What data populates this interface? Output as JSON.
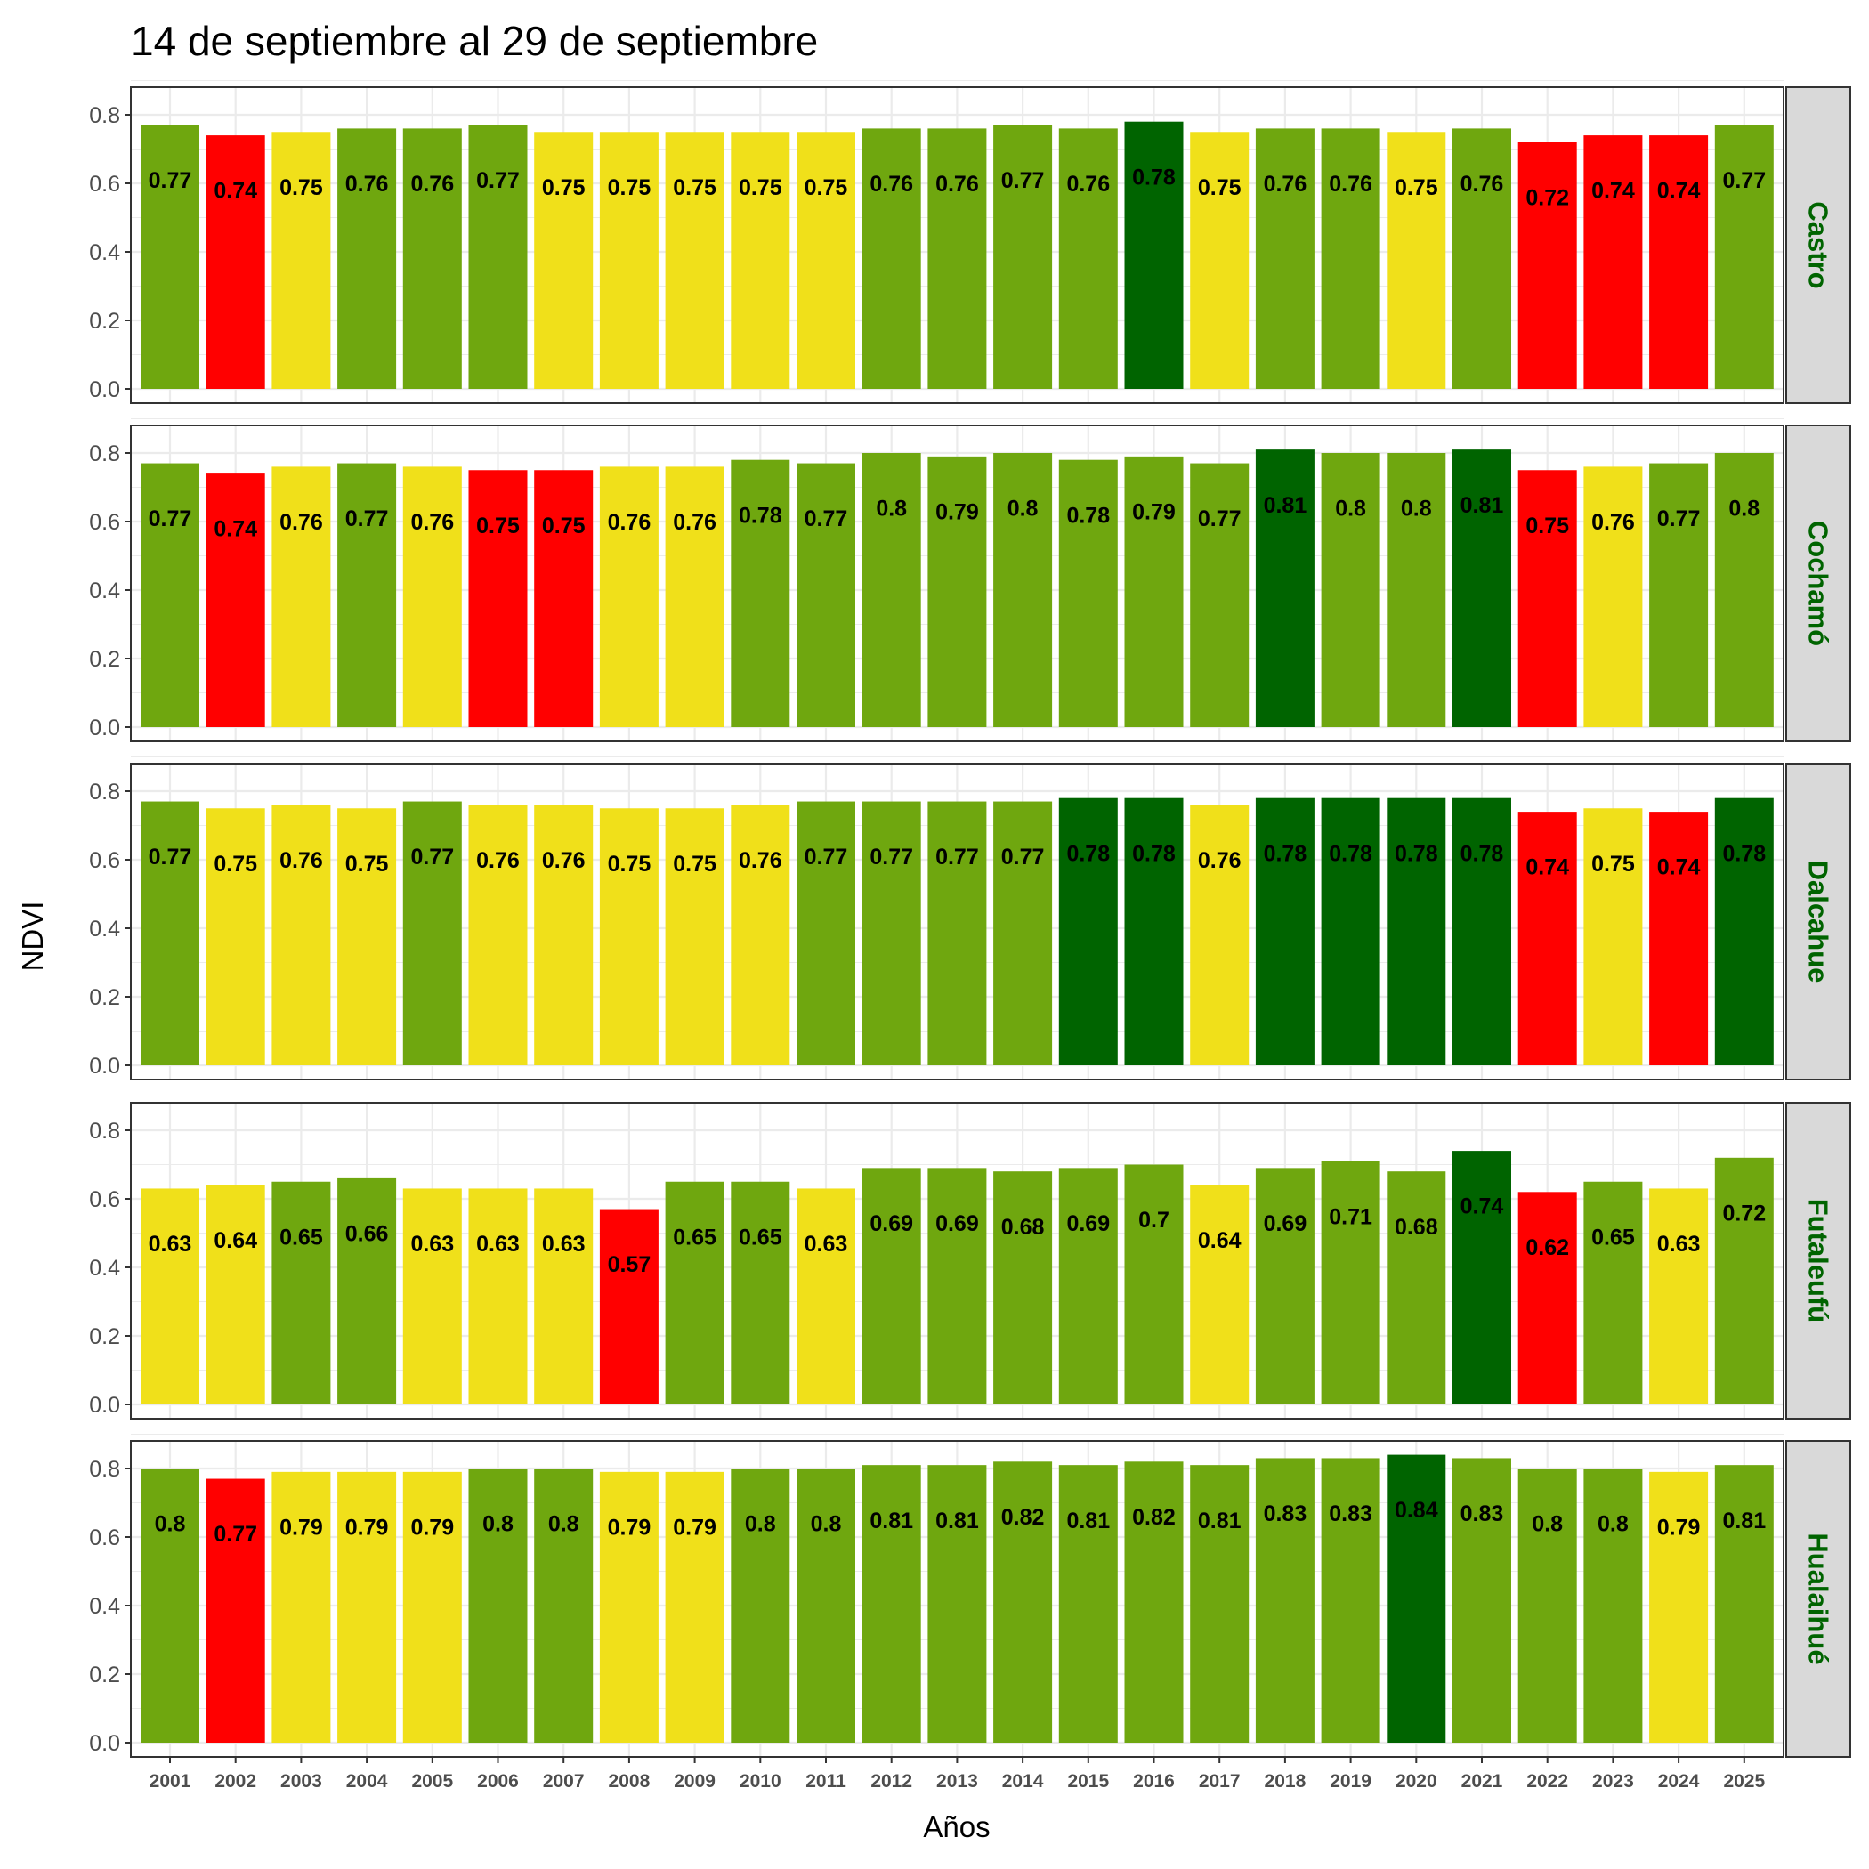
{
  "chart_data": {
    "type": "bar",
    "title": "14 de septiembre al 29 de septiembre",
    "xlabel": "Años",
    "ylabel": "NDVI",
    "ylim": [
      0,
      0.88
    ],
    "yticks": [
      "0.0",
      "0.2",
      "0.4",
      "0.6",
      "0.8"
    ],
    "grid": true,
    "categories": [
      "2001",
      "2002",
      "2003",
      "2004",
      "2005",
      "2006",
      "2007",
      "2008",
      "2009",
      "2010",
      "2011",
      "2012",
      "2013",
      "2014",
      "2015",
      "2016",
      "2017",
      "2018",
      "2019",
      "2020",
      "2021",
      "2022",
      "2023",
      "2024",
      "2025"
    ],
    "color_map": {
      "D": "#006400",
      "G": "#6fa70f",
      "Y": "#f0e01a",
      "R": "#ff0000"
    },
    "series": [
      {
        "name": "Castro",
        "values": [
          0.77,
          0.74,
          0.75,
          0.76,
          0.76,
          0.77,
          0.75,
          0.75,
          0.75,
          0.75,
          0.75,
          0.76,
          0.76,
          0.77,
          0.76,
          0.78,
          0.75,
          0.76,
          0.76,
          0.75,
          0.76,
          0.72,
          0.74,
          0.74,
          0.77
        ],
        "colors": [
          "G",
          "R",
          "Y",
          "G",
          "G",
          "G",
          "Y",
          "Y",
          "Y",
          "Y",
          "Y",
          "G",
          "G",
          "G",
          "G",
          "D",
          "Y",
          "G",
          "G",
          "Y",
          "G",
          "R",
          "R",
          "R",
          "G"
        ]
      },
      {
        "name": "Cochamó",
        "values": [
          0.77,
          0.74,
          0.76,
          0.77,
          0.76,
          0.75,
          0.75,
          0.76,
          0.76,
          0.78,
          0.77,
          0.8,
          0.79,
          0.8,
          0.78,
          0.79,
          0.77,
          0.81,
          0.8,
          0.8,
          0.81,
          0.75,
          0.76,
          0.77,
          0.8
        ],
        "colors": [
          "G",
          "R",
          "Y",
          "G",
          "Y",
          "R",
          "R",
          "Y",
          "Y",
          "G",
          "G",
          "G",
          "G",
          "G",
          "G",
          "G",
          "G",
          "D",
          "G",
          "G",
          "D",
          "R",
          "Y",
          "G",
          "G"
        ]
      },
      {
        "name": "Dalcahue",
        "values": [
          0.77,
          0.75,
          0.76,
          0.75,
          0.77,
          0.76,
          0.76,
          0.75,
          0.75,
          0.76,
          0.77,
          0.77,
          0.77,
          0.77,
          0.78,
          0.78,
          0.76,
          0.78,
          0.78,
          0.78,
          0.78,
          0.74,
          0.75,
          0.74,
          0.78
        ],
        "colors": [
          "G",
          "Y",
          "Y",
          "Y",
          "G",
          "Y",
          "Y",
          "Y",
          "Y",
          "Y",
          "G",
          "G",
          "G",
          "G",
          "D",
          "D",
          "Y",
          "D",
          "D",
          "D",
          "D",
          "R",
          "Y",
          "R",
          "D"
        ]
      },
      {
        "name": "Futaleufú",
        "values": [
          0.63,
          0.64,
          0.65,
          0.66,
          0.63,
          0.63,
          0.63,
          0.57,
          0.65,
          0.65,
          0.63,
          0.69,
          0.69,
          0.68,
          0.69,
          0.7,
          0.64,
          0.69,
          0.71,
          0.68,
          0.74,
          0.62,
          0.65,
          0.63,
          0.72
        ],
        "colors": [
          "Y",
          "Y",
          "G",
          "G",
          "Y",
          "Y",
          "Y",
          "R",
          "G",
          "G",
          "Y",
          "G",
          "G",
          "G",
          "G",
          "G",
          "Y",
          "G",
          "G",
          "G",
          "D",
          "R",
          "G",
          "Y",
          "G"
        ]
      },
      {
        "name": "Hualaihué",
        "values": [
          0.8,
          0.77,
          0.79,
          0.79,
          0.79,
          0.8,
          0.8,
          0.79,
          0.79,
          0.8,
          0.8,
          0.81,
          0.81,
          0.82,
          0.81,
          0.82,
          0.81,
          0.83,
          0.83,
          0.84,
          0.83,
          0.8,
          0.8,
          0.79,
          0.81
        ],
        "colors": [
          "G",
          "R",
          "Y",
          "Y",
          "Y",
          "G",
          "G",
          "Y",
          "Y",
          "G",
          "G",
          "G",
          "G",
          "G",
          "G",
          "G",
          "G",
          "G",
          "G",
          "D",
          "G",
          "G",
          "G",
          "Y",
          "G"
        ]
      }
    ]
  }
}
